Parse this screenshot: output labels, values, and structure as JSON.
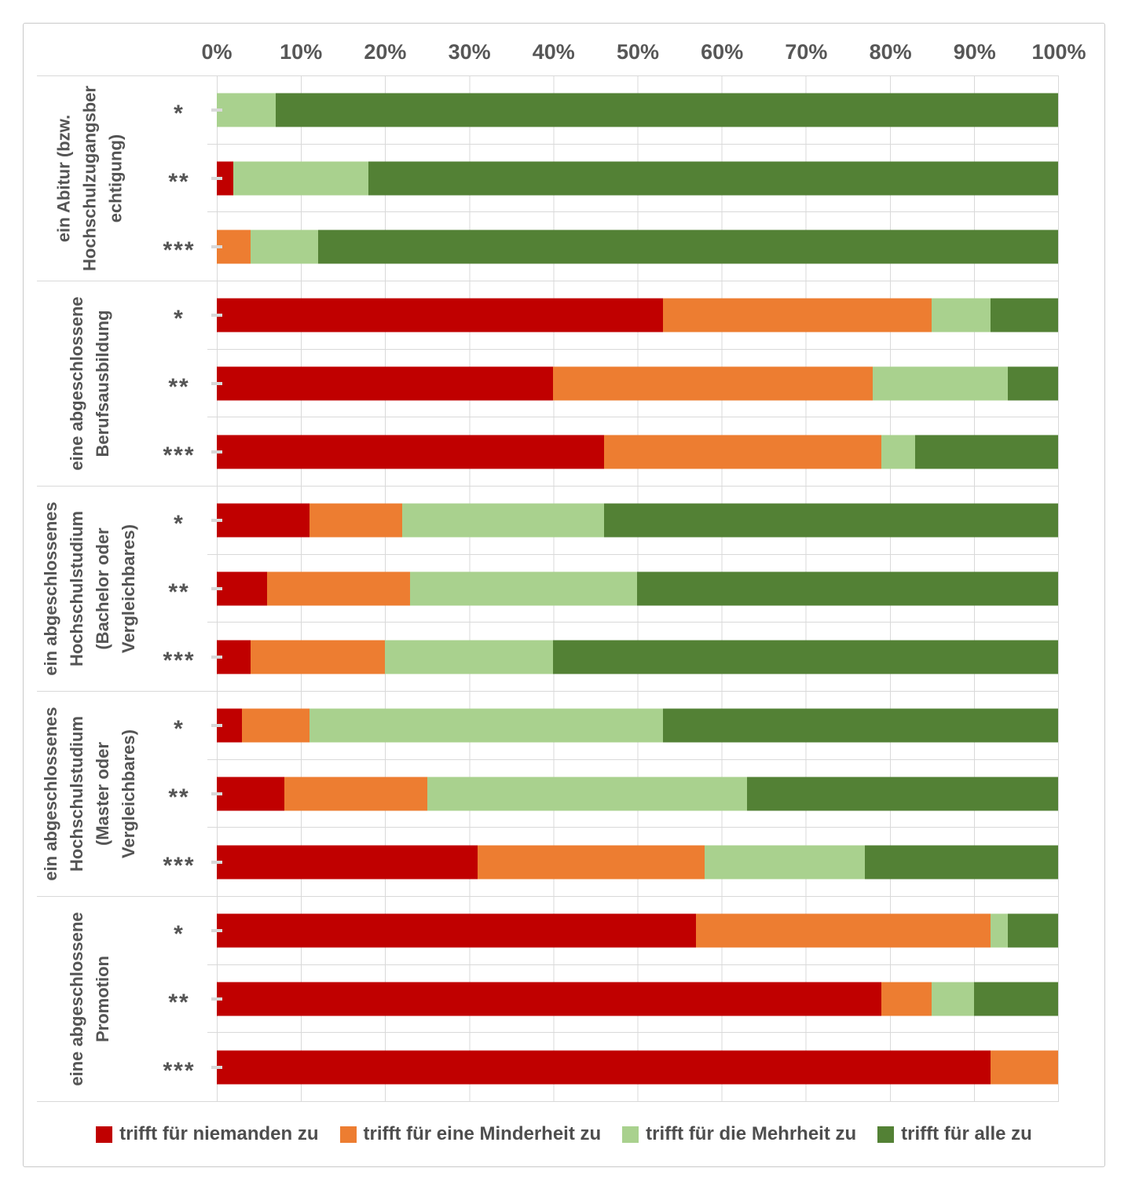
{
  "chart": {
    "axis_ticks": [
      "0%",
      "10%",
      "20%",
      "30%",
      "40%",
      "50%",
      "60%",
      "70%",
      "80%",
      "90%",
      "100%"
    ],
    "series_labels": [
      "trifft für niemanden zu",
      "trifft für eine Minderheit zu",
      "trifft für die Mehrheit zu",
      "trifft für alle zu"
    ],
    "series_keys": [
      "niemanden",
      "minderheit",
      "mehrheit",
      "alle"
    ],
    "series_colors": [
      "#C00000",
      "#ED7D31",
      "#A9D18E",
      "#538135"
    ],
    "gridline_color": "#D9D9D9",
    "groups": [
      {
        "label": "ein Abitur (bzw. Hochschulzugangsberechtigung)",
        "label_wrapped": "ein Abitur (bzw.\nHochschulzugangsber\nechtigung)",
        "rows": [
          {
            "marker": "*",
            "values": [
              0,
              0,
              7,
              93
            ]
          },
          {
            "marker": "**",
            "values": [
              2,
              0,
              16,
              82
            ]
          },
          {
            "marker": "***",
            "values": [
              0,
              4,
              8,
              88
            ]
          }
        ]
      },
      {
        "label": "eine abgeschlossene Berufsausbildung",
        "label_wrapped": "eine abgeschlossene\nBerufsausbildung",
        "rows": [
          {
            "marker": "*",
            "values": [
              53,
              32,
              7,
              8
            ]
          },
          {
            "marker": "**",
            "values": [
              40,
              38,
              16,
              6
            ]
          },
          {
            "marker": "***",
            "values": [
              46,
              33,
              4,
              17
            ]
          }
        ]
      },
      {
        "label": "ein abgeschlossenes Hochschulstudium (Bachelor oder Vergleichbares)",
        "label_wrapped": "ein abgeschlossenes\nHochschulstudium\n(Bachelor oder\nVergleichbares)",
        "rows": [
          {
            "marker": "*",
            "values": [
              11,
              11,
              24,
              54
            ]
          },
          {
            "marker": "**",
            "values": [
              6,
              17,
              27,
              50
            ]
          },
          {
            "marker": "***",
            "values": [
              4,
              16,
              20,
              60
            ]
          }
        ]
      },
      {
        "label": "ein abgeschlossenes Hochschulstudium (Master oder Vergleichbares)",
        "label_wrapped": "ein abgeschlossenes\nHochschulstudium\n(Master oder\nVergleichbares)",
        "rows": [
          {
            "marker": "*",
            "values": [
              3,
              8,
              42,
              47
            ]
          },
          {
            "marker": "**",
            "values": [
              8,
              17,
              38,
              37
            ]
          },
          {
            "marker": "***",
            "values": [
              31,
              27,
              19,
              23
            ]
          }
        ]
      },
      {
        "label": "eine abgeschlossene Promotion",
        "label_wrapped": "eine abgeschlossene\nPromotion",
        "rows": [
          {
            "marker": "*",
            "values": [
              57,
              35,
              2,
              6
            ]
          },
          {
            "marker": "**",
            "values": [
              79,
              6,
              5,
              10
            ]
          },
          {
            "marker": "***",
            "values": [
              92,
              8,
              0,
              0
            ]
          }
        ]
      }
    ]
  },
  "chart_data": {
    "type": "bar",
    "orientation": "horizontal",
    "stacked": true,
    "value_unit": "percent",
    "title": "",
    "x_axis": {
      "position": "top",
      "range": [
        0,
        100
      ],
      "tick_labels": [
        "0%",
        "10%",
        "20%",
        "30%",
        "40%",
        "50%",
        "60%",
        "70%",
        "80%",
        "90%",
        "100%"
      ],
      "grid": true
    },
    "categories": [
      "ein Abitur (bzw. Hochschulzugangsberechtigung) — *",
      "ein Abitur (bzw. Hochschulzugangsberechtigung) — **",
      "ein Abitur (bzw. Hochschulzugangsberechtigung) — ***",
      "eine abgeschlossene Berufsausbildung — *",
      "eine abgeschlossene Berufsausbildung — **",
      "eine abgeschlossene Berufsausbildung — ***",
      "ein abgeschlossenes Hochschulstudium (Bachelor oder Vergleichbares) — *",
      "ein abgeschlossenes Hochschulstudium (Bachelor oder Vergleichbares) — **",
      "ein abgeschlossenes Hochschulstudium (Bachelor oder Vergleichbares) — ***",
      "ein abgeschlossenes Hochschulstudium (Master oder Vergleichbares) — *",
      "ein abgeschlossenes Hochschulstudium (Master oder Vergleichbares) — **",
      "ein abgeschlossenes Hochschulstudium (Master oder Vergleichbares) — ***",
      "eine abgeschlossene Promotion — *",
      "eine abgeschlossene Promotion — **",
      "eine abgeschlossene Promotion — ***"
    ],
    "series": [
      {
        "name": "trifft für niemanden zu",
        "color": "#C00000",
        "values": [
          0,
          2,
          0,
          53,
          40,
          46,
          11,
          6,
          4,
          3,
          8,
          31,
          57,
          79,
          92
        ]
      },
      {
        "name": "trifft für eine Minderheit zu",
        "color": "#ED7D31",
        "values": [
          0,
          0,
          4,
          32,
          38,
          33,
          11,
          17,
          16,
          8,
          17,
          27,
          35,
          6,
          8
        ]
      },
      {
        "name": "trifft für die Mehrheit zu",
        "color": "#A9D18E",
        "values": [
          7,
          16,
          8,
          7,
          16,
          4,
          24,
          27,
          20,
          42,
          38,
          19,
          2,
          5,
          0
        ]
      },
      {
        "name": "trifft für alle zu",
        "color": "#538135",
        "values": [
          93,
          82,
          88,
          8,
          6,
          17,
          54,
          50,
          60,
          47,
          37,
          23,
          6,
          10,
          0
        ]
      }
    ],
    "legend": {
      "position": "bottom",
      "labels": [
        "trifft für niemanden zu",
        "trifft für eine Minderheit zu",
        "trifft für die Mehrheit zu",
        "trifft für alle zu"
      ]
    }
  }
}
